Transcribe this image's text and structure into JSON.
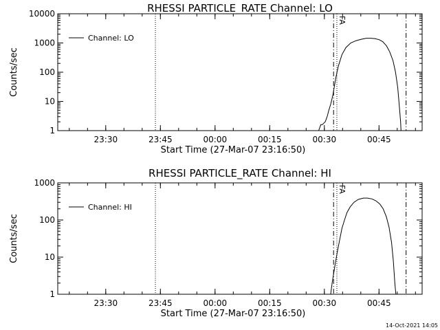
{
  "timestamp": "14-Oct-2021 14:05",
  "chart_data": [
    {
      "type": "line",
      "title": "RHESSI PARTICLE_RATE Channel: LO",
      "xlabel": "Start Time (27-Mar-07 23:16:50)",
      "ylabel": "Counts/sec",
      "yscale": "log",
      "ylim": [
        1,
        10000
      ],
      "xlim_minutes_after_start": [
        0,
        100
      ],
      "x_ticks": [
        {
          "label": "23:30",
          "min": 13.17
        },
        {
          "label": "23:45",
          "min": 28.17
        },
        {
          "label": "00:00",
          "min": 43.17
        },
        {
          "label": "00:15",
          "min": 58.17
        },
        {
          "label": "00:30",
          "min": 73.17
        },
        {
          "label": "00:45",
          "min": 88.17
        }
      ],
      "y_ticks": [
        {
          "label": "1",
          "value": 1
        },
        {
          "label": "10",
          "value": 10
        },
        {
          "label": "100",
          "value": 100
        },
        {
          "label": "1000",
          "value": 1000
        },
        {
          "label": "10000",
          "value": 10000
        }
      ],
      "legend": {
        "label": "Channel: LO",
        "position": "top-left"
      },
      "markers": [
        {
          "style": "dotted",
          "min": 26.8
        },
        {
          "style": "dashdot",
          "min": 75.7
        },
        {
          "style": "dotted",
          "min": 76.6
        },
        {
          "style": "dashdot",
          "min": 95.6
        }
      ],
      "marker_text": "FA",
      "series": [
        {
          "x": [
            71.6,
            72.2,
            72.6,
            73.4,
            73.7,
            74.0,
            74.4,
            74.9,
            75.5,
            75.9,
            76.3,
            77.0,
            78.0,
            79.1,
            80.4,
            81.9,
            83.4,
            84.7,
            85.9,
            87.1,
            88.2,
            89.2,
            90.2,
            91.1,
            92.0,
            92.7,
            93.3,
            93.7,
            94.1,
            94.2
          ],
          "y": [
            1,
            1.6,
            1.6,
            2.0,
            2.5,
            3.2,
            5,
            8,
            16,
            32,
            63,
            160,
            400,
            700,
            1000,
            1200,
            1350,
            1450,
            1450,
            1400,
            1300,
            1100,
            800,
            500,
            250,
            100,
            30,
            8,
            2,
            1
          ]
        }
      ]
    },
    {
      "type": "line",
      "title": "RHESSI PARTICLE_RATE Channel: HI",
      "xlabel": "Start Time (27-Mar-07 23:16:50)",
      "ylabel": "Counts/sec",
      "yscale": "log",
      "ylim": [
        1,
        1000
      ],
      "xlim_minutes_after_start": [
        0,
        100
      ],
      "x_ticks": [
        {
          "label": "23:30",
          "min": 13.17
        },
        {
          "label": "23:45",
          "min": 28.17
        },
        {
          "label": "00:00",
          "min": 43.17
        },
        {
          "label": "00:15",
          "min": 58.17
        },
        {
          "label": "00:30",
          "min": 73.17
        },
        {
          "label": "00:45",
          "min": 88.17
        }
      ],
      "y_ticks": [
        {
          "label": "1",
          "value": 1
        },
        {
          "label": "10",
          "value": 10
        },
        {
          "label": "100",
          "value": 100
        },
        {
          "label": "1000",
          "value": 1000
        }
      ],
      "legend": {
        "label": "Channel: HI",
        "position": "top-left"
      },
      "markers": [
        {
          "style": "dotted",
          "min": 26.8
        },
        {
          "style": "dashdot",
          "min": 75.7
        },
        {
          "style": "dotted",
          "min": 76.6
        },
        {
          "style": "dashdot",
          "min": 95.6
        }
      ],
      "marker_text": "FA",
      "series": [
        {
          "x": [
            74.9,
            75.3,
            75.8,
            76.3,
            76.8,
            77.4,
            78.0,
            78.7,
            79.4,
            80.3,
            81.3,
            82.5,
            83.9,
            85.0,
            86.2,
            87.3,
            88.4,
            89.3,
            90.2,
            90.9,
            91.6,
            92.1,
            92.5,
            92.8
          ],
          "y": [
            1,
            2,
            4,
            8,
            15,
            30,
            60,
            100,
            160,
            230,
            300,
            360,
            390,
            390,
            370,
            330,
            270,
            200,
            120,
            65,
            25,
            8,
            2,
            1
          ]
        }
      ]
    }
  ]
}
